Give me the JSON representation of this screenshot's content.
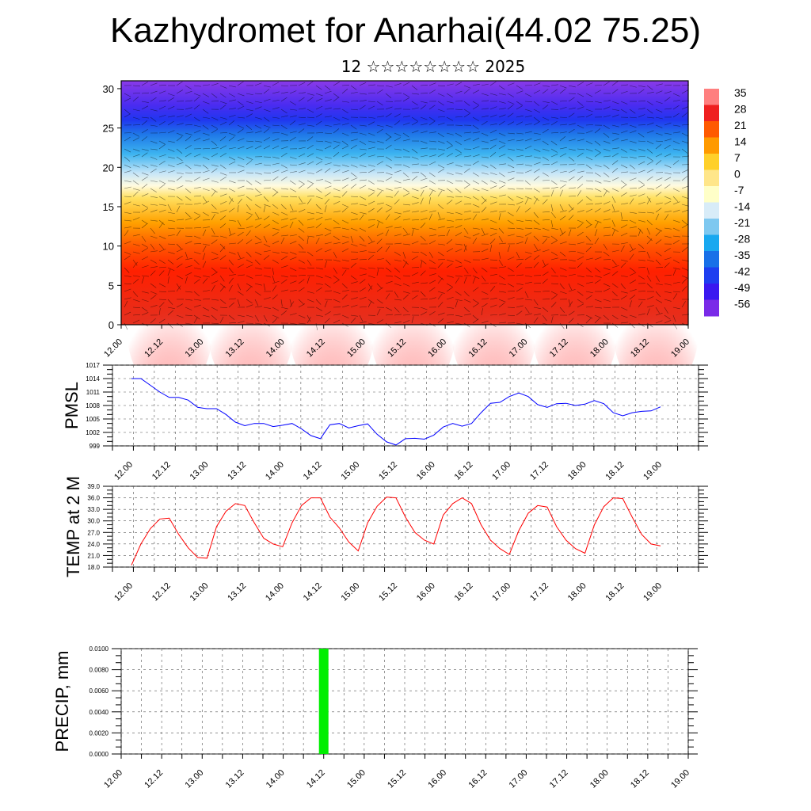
{
  "title": "Kazhydromet for Anarhai(44.02 75.25)",
  "subtitle": "12 ☆☆☆☆☆☆☆☆ 2025",
  "time_labels": [
    "12.00",
    "12.12",
    "13.00",
    "13.12",
    "14.00",
    "14.12",
    "15.00",
    "15.12",
    "16.00",
    "16.12",
    "17.00",
    "17.12",
    "18.00",
    "18.12",
    "19.00"
  ],
  "chart_data": [
    {
      "type": "heatmap",
      "x_labels": [
        "12.00",
        "12.12",
        "13.00",
        "13.12",
        "14.00",
        "14.12",
        "15.00",
        "15.12",
        "16.00",
        "16.12",
        "17.00",
        "17.12",
        "18.00",
        "18.12",
        "19.00"
      ],
      "y_ticks": [
        0,
        5,
        10,
        15,
        20,
        25,
        30
      ],
      "ylim": [
        0,
        31
      ],
      "colorbar_labels": [
        "35",
        "28",
        "21",
        "14",
        "7",
        "0",
        "-7",
        "-14",
        "-21",
        "-28",
        "-35",
        "-42",
        "-49",
        "-56"
      ],
      "colormap": [
        "#ff7f7f",
        "#ef2020",
        "#ff5a00",
        "#ff9a00",
        "#ffd02a",
        "#ffe68a",
        "#ffffc8",
        "#d8ecf8",
        "#7ec8f0",
        "#18a8f0",
        "#1870e8",
        "#1e3ef0",
        "#3a18f0",
        "#7a2ae8"
      ]
    },
    {
      "type": "line",
      "ylabel": "PMSL",
      "ylim": [
        999,
        1017
      ],
      "y_ticks": [
        999,
        1002,
        1005,
        1008,
        1011,
        1014,
        1017
      ],
      "color": "#0000ff",
      "values": [
        1014.0,
        1014.0,
        1012.5,
        1011.0,
        1009.8,
        1009.8,
        1009.2,
        1007.6,
        1007.3,
        1007.3,
        1006.0,
        1004.3,
        1003.5,
        1004.0,
        1004.0,
        1003.3,
        1003.6,
        1004.0,
        1002.8,
        1001.3,
        1000.6,
        1003.7,
        1004.0,
        1003.0,
        1003.5,
        1003.9,
        1001.6,
        999.9,
        999.2,
        1000.6,
        1000.7,
        1000.5,
        1001.4,
        1003.2,
        1004.0,
        1003.4,
        1004.0,
        1006.4,
        1008.5,
        1008.7,
        1010.0,
        1010.8,
        1010.0,
        1008.2,
        1007.6,
        1008.4,
        1008.5,
        1008.0,
        1008.3,
        1009.1,
        1008.4,
        1006.4,
        1005.7,
        1006.4,
        1006.7,
        1006.8,
        1007.7
      ]
    },
    {
      "type": "line",
      "ylabel": "TEMP at 2 M",
      "ylim": [
        18,
        39
      ],
      "y_ticks": [
        "18.0",
        "21.0",
        "24.0",
        "27.0",
        "30.0",
        "33.0",
        "36.0",
        "39.0"
      ],
      "color": "#ff0000",
      "values": [
        18.5,
        24.0,
        28.0,
        30.5,
        30.7,
        26.5,
        23.0,
        20.5,
        20.3,
        28.5,
        32.5,
        34.5,
        34.0,
        29.5,
        25.5,
        24.0,
        23.3,
        29.5,
        34.0,
        36.0,
        36.0,
        31.0,
        28.2,
        24.5,
        22.2,
        29.5,
        33.8,
        36.2,
        36.0,
        31.0,
        27.0,
        25.0,
        24.0,
        31.5,
        34.5,
        36.0,
        34.5,
        29.0,
        25.0,
        22.8,
        21.3,
        27.5,
        32.0,
        34.0,
        33.6,
        28.5,
        25.0,
        22.8,
        21.6,
        29.0,
        33.7,
        36.0,
        35.8,
        31.0,
        26.5,
        24.0,
        23.5
      ]
    },
    {
      "type": "bar",
      "ylabel": "PRECIP, mm",
      "ylim": [
        0,
        0.01
      ],
      "y_ticks": [
        "0.0000",
        "0.0020",
        "0.0040",
        "0.0060",
        "0.0080",
        "0.0100"
      ],
      "color": "#00ee00",
      "bars": [
        {
          "x": "14.12",
          "value": 0.01
        }
      ]
    }
  ]
}
